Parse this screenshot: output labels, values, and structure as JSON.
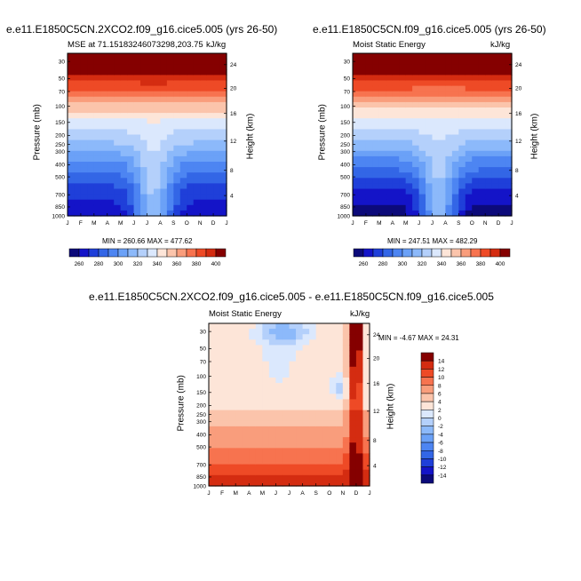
{
  "panels": [
    {
      "title": "e.e11.E1850C5CN.2XCO2.f09_g16.cice5.005 (yrs 26-50)",
      "left_subtitle": "MSE at 71.15183246073298,203.75",
      "right_subtitle": "kJ/kg",
      "y_label": "Pressure (mb)",
      "y2_label": "Height (km)",
      "min_max": "MIN = 260.66  MAX = 477.62",
      "colorbar_labels": [
        "260",
        "280",
        "300",
        "320",
        "340",
        "360",
        "380",
        "400"
      ]
    },
    {
      "title": "e.e11.E1850C5CN.f09_g16.cice5.005 (yrs 26-50)",
      "left_subtitle": "Moist Static Energy",
      "right_subtitle": "kJ/kg",
      "y_label": "Pressure (mb)",
      "y2_label": "Height (km)",
      "min_max": "MIN = 247.51  MAX = 482.29",
      "colorbar_labels": [
        "260",
        "280",
        "300",
        "320",
        "340",
        "360",
        "380",
        "400"
      ]
    },
    {
      "title": "e.e11.E1850C5CN.2XCO2.f09_g16.cice5.005 - e.e11.E1850C5CN.f09_g16.cice5.005",
      "left_subtitle": "Moist Static Energy",
      "right_subtitle": "kJ/kg",
      "y_label": "Pressure (mb)",
      "y2_label": "Height (km)",
      "min_max": "MIN =  -4.67  MAX =  24.31",
      "colorbar_labels": [
        "14",
        "12",
        "10",
        "8",
        "6",
        "4",
        "2",
        "0",
        "-2",
        "-4",
        "-6",
        "-8",
        "-10",
        "-12",
        "-14"
      ]
    }
  ],
  "chart_data": [
    {
      "type": "heatmap",
      "title": "e.e11.E1850C5CN.2XCO2.f09_g16.cice5.005 (yrs 26-50)",
      "variable": "MSE at 71.15183246073298,203.75",
      "units": "kJ/kg",
      "xlabel": "",
      "ylabel": "Pressure (mb)",
      "y2label": "Height (km)",
      "x_ticks": [
        "J",
        "F",
        "M",
        "A",
        "M",
        "J",
        "J",
        "A",
        "S",
        "O",
        "N",
        "D",
        "J"
      ],
      "y_ticks": [
        "30",
        "50",
        "70",
        "100",
        "150",
        "200",
        "250",
        "300",
        "400",
        "500",
        "700",
        "850",
        "1000"
      ],
      "y2_ticks": [
        "24",
        "20",
        "16",
        "12",
        "8",
        "4"
      ],
      "min": 260.66,
      "max": 477.62,
      "levels": [
        260,
        270,
        280,
        290,
        300,
        310,
        320,
        330,
        340,
        350,
        360,
        370,
        380,
        390,
        400
      ],
      "colors": [
        "#0c0a7a",
        "#1414c8",
        "#1f3fd9",
        "#3366e6",
        "#4d85f2",
        "#6ba1f7",
        "#8cb9fa",
        "#b4d0fb",
        "#dbe8fd",
        "#fde5d8",
        "#fbc4ab",
        "#f99d7c",
        "#f7734f",
        "#ee4a26",
        "#d42c11",
        "#850000"
      ],
      "approx_field": {
        "pressure_mb": [
          1000,
          850,
          700,
          500,
          400,
          300,
          250,
          200,
          150,
          100,
          70,
          50,
          30
        ],
        "jan": [
          265,
          270,
          278,
          290,
          300,
          316,
          326,
          338,
          352,
          370,
          390,
          410,
          430
        ],
        "jul": [
          318,
          320,
          322,
          325,
          328,
          331,
          334,
          340,
          352,
          370,
          390,
          410,
          440
        ]
      }
    },
    {
      "type": "heatmap",
      "title": "e.e11.E1850C5CN.f09_g16.cice5.005 (yrs 26-50)",
      "variable": "Moist Static Energy",
      "units": "kJ/kg",
      "xlabel": "",
      "ylabel": "Pressure (mb)",
      "y2label": "Height (km)",
      "x_ticks": [
        "J",
        "F",
        "M",
        "A",
        "M",
        "J",
        "J",
        "A",
        "S",
        "O",
        "N",
        "D",
        "J"
      ],
      "y_ticks": [
        "30",
        "50",
        "70",
        "100",
        "150",
        "200",
        "250",
        "300",
        "400",
        "500",
        "700",
        "850",
        "1000"
      ],
      "y2_ticks": [
        "24",
        "20",
        "16",
        "12",
        "8",
        "4"
      ],
      "min": 247.51,
      "max": 482.29,
      "levels": [
        260,
        270,
        280,
        290,
        300,
        310,
        320,
        330,
        340,
        350,
        360,
        370,
        380,
        390,
        400
      ],
      "colors": [
        "#0c0a7a",
        "#1414c8",
        "#1f3fd9",
        "#3366e6",
        "#4d85f2",
        "#6ba1f7",
        "#8cb9fa",
        "#b4d0fb",
        "#dbe8fd",
        "#fde5d8",
        "#fbc4ab",
        "#f99d7c",
        "#f7734f",
        "#ee4a26",
        "#d42c11",
        "#850000"
      ],
      "approx_field": {
        "pressure_mb": [
          1000,
          850,
          700,
          500,
          400,
          300,
          250,
          200,
          150,
          100,
          70,
          50,
          30
        ],
        "jan": [
          255,
          262,
          272,
          286,
          297,
          314,
          325,
          337,
          352,
          370,
          390,
          410,
          430
        ],
        "jul": [
          312,
          315,
          318,
          322,
          325,
          328,
          332,
          338,
          350,
          368,
          388,
          408,
          440
        ]
      }
    },
    {
      "type": "heatmap",
      "title": "e.e11.E1850C5CN.2XCO2.f09_g16.cice5.005 - e.e11.E1850C5CN.f09_g16.cice5.005",
      "variable": "Moist Static Energy",
      "units": "kJ/kg",
      "xlabel": "",
      "ylabel": "Pressure (mb)",
      "y2label": "Height (km)",
      "x_ticks": [
        "J",
        "F",
        "M",
        "A",
        "M",
        "J",
        "J",
        "A",
        "S",
        "O",
        "N",
        "D",
        "J"
      ],
      "y_ticks": [
        "30",
        "50",
        "70",
        "100",
        "150",
        "200",
        "250",
        "300",
        "400",
        "500",
        "700",
        "850",
        "1000"
      ],
      "y2_ticks": [
        "24",
        "20",
        "16",
        "12",
        "8",
        "4"
      ],
      "min": -4.67,
      "max": 24.31,
      "levels": [
        -14,
        -12,
        -10,
        -8,
        -6,
        -4,
        -2,
        0,
        2,
        4,
        6,
        8,
        10,
        12,
        14
      ],
      "colors": [
        "#0c0a7a",
        "#1414c8",
        "#1f3fd9",
        "#3366e6",
        "#4d85f2",
        "#6ba1f7",
        "#8cb9fa",
        "#b4d0fb",
        "#dbe8fd",
        "#fde5d8",
        "#fbc4ab",
        "#f99d7c",
        "#f7734f",
        "#ee4a26",
        "#d42c11",
        "#850000"
      ]
    }
  ]
}
